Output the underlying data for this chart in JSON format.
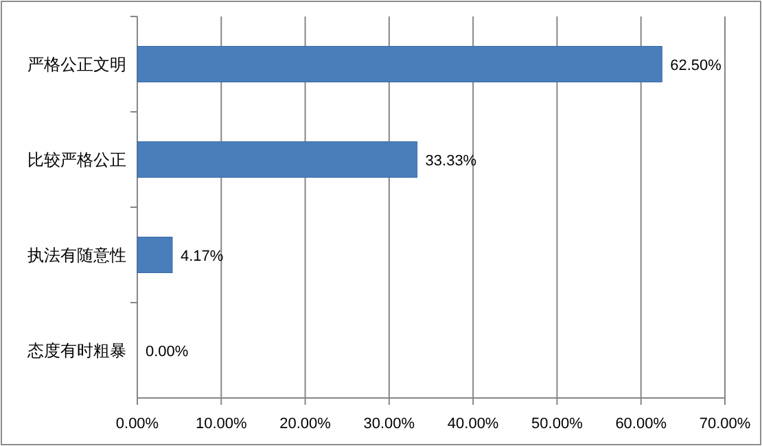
{
  "chart_data": {
    "type": "bar",
    "orientation": "horizontal",
    "categories": [
      "严格公正文明",
      "比较严格公正",
      "执法有随意性",
      "态度有时粗暴"
    ],
    "values": [
      62.5,
      33.33,
      4.17,
      0.0
    ],
    "value_labels": [
      "62.50%",
      "33.33%",
      "4.17%",
      "0.00%"
    ],
    "color": "#4a7ebb",
    "xlim": [
      0,
      70
    ],
    "xticks": [
      {
        "value": 0,
        "label": "0.00%"
      },
      {
        "value": 10,
        "label": "10.00%"
      },
      {
        "value": 20,
        "label": "20.00%"
      },
      {
        "value": 30,
        "label": "30.00%"
      },
      {
        "value": 40,
        "label": "40.00%"
      },
      {
        "value": 50,
        "label": "50.00%"
      },
      {
        "value": 60,
        "label": "60.00%"
      },
      {
        "value": 70,
        "label": "70.00%"
      }
    ],
    "grid": "x"
  }
}
